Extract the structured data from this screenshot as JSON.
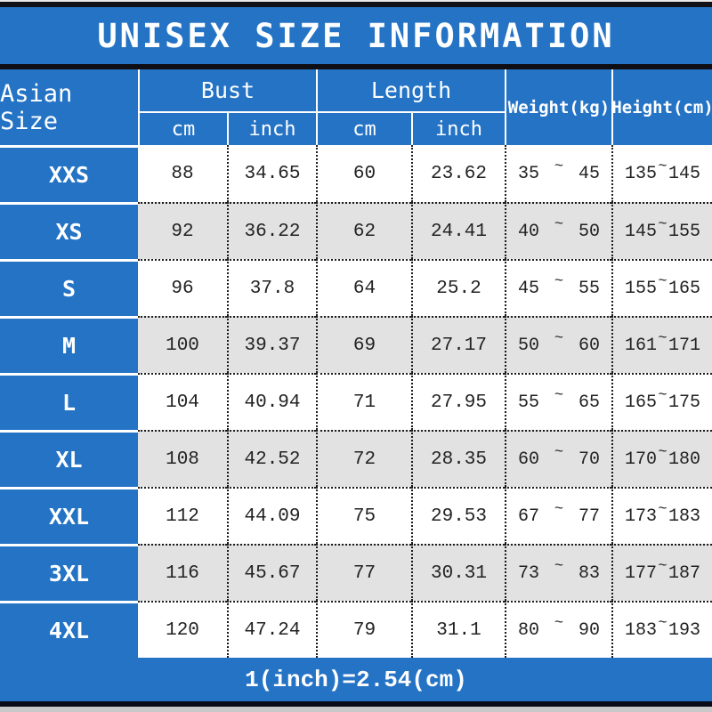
{
  "title": "UNISEX SIZE INFORMATION",
  "colors": {
    "blue": "#2473c5",
    "row_alt": "#e2e2e2",
    "border_dark": "#111118",
    "text_dark": "#222222",
    "text_light": "#ffffff"
  },
  "header": {
    "asian_size": "Asian Size",
    "bust": "Bust",
    "length": "Length",
    "weight": "Weight(kg)",
    "height": "Height(cm)",
    "cm": "cm",
    "inch": "inch"
  },
  "range_separator": "~",
  "rows": [
    {
      "size": "XXS",
      "bust_cm": "88",
      "bust_inch": "34.65",
      "length_cm": "60",
      "length_inch": "23.62",
      "weight_min": "35",
      "weight_max": "45",
      "height_min": "135",
      "height_max": "145"
    },
    {
      "size": "XS",
      "bust_cm": "92",
      "bust_inch": "36.22",
      "length_cm": "62",
      "length_inch": "24.41",
      "weight_min": "40",
      "weight_max": "50",
      "height_min": "145",
      "height_max": "155"
    },
    {
      "size": "S",
      "bust_cm": "96",
      "bust_inch": "37.8",
      "length_cm": "64",
      "length_inch": "25.2",
      "weight_min": "45",
      "weight_max": "55",
      "height_min": "155",
      "height_max": "165"
    },
    {
      "size": "M",
      "bust_cm": "100",
      "bust_inch": "39.37",
      "length_cm": "69",
      "length_inch": "27.17",
      "weight_min": "50",
      "weight_max": "60",
      "height_min": "161",
      "height_max": "171"
    },
    {
      "size": "L",
      "bust_cm": "104",
      "bust_inch": "40.94",
      "length_cm": "71",
      "length_inch": "27.95",
      "weight_min": "55",
      "weight_max": "65",
      "height_min": "165",
      "height_max": "175"
    },
    {
      "size": "XL",
      "bust_cm": "108",
      "bust_inch": "42.52",
      "length_cm": "72",
      "length_inch": "28.35",
      "weight_min": "60",
      "weight_max": "70",
      "height_min": "170",
      "height_max": "180"
    },
    {
      "size": "XXL",
      "bust_cm": "112",
      "bust_inch": "44.09",
      "length_cm": "75",
      "length_inch": "29.53",
      "weight_min": "67",
      "weight_max": "77",
      "height_min": "173",
      "height_max": "183"
    },
    {
      "size": "3XL",
      "bust_cm": "116",
      "bust_inch": "45.67",
      "length_cm": "77",
      "length_inch": "30.31",
      "weight_min": "73",
      "weight_max": "83",
      "height_min": "177",
      "height_max": "187"
    },
    {
      "size": "4XL",
      "bust_cm": "120",
      "bust_inch": "47.24",
      "length_cm": "79",
      "length_inch": "31.1",
      "weight_min": "80",
      "weight_max": "90",
      "height_min": "183",
      "height_max": "193"
    }
  ],
  "footer_note": "1(inch)=2.54(cm)",
  "chart_data": {
    "type": "table",
    "title": "UNISEX SIZE INFORMATION",
    "columns": [
      "Asian Size",
      "Bust cm",
      "Bust inch",
      "Length cm",
      "Length inch",
      "Weight(kg)",
      "Height(cm)"
    ],
    "rows": [
      [
        "XXS",
        "88",
        "34.65",
        "60",
        "23.62",
        "35~45",
        "135~145"
      ],
      [
        "XS",
        "92",
        "36.22",
        "62",
        "24.41",
        "40~50",
        "145~155"
      ],
      [
        "S",
        "96",
        "37.8",
        "64",
        "25.2",
        "45~55",
        "155~165"
      ],
      [
        "M",
        "100",
        "39.37",
        "69",
        "27.17",
        "50~60",
        "161~171"
      ],
      [
        "L",
        "104",
        "40.94",
        "71",
        "27.95",
        "55~65",
        "165~175"
      ],
      [
        "XL",
        "108",
        "42.52",
        "72",
        "28.35",
        "60~70",
        "170~180"
      ],
      [
        "XXL",
        "112",
        "44.09",
        "75",
        "29.53",
        "67~77",
        "173~183"
      ],
      [
        "3XL",
        "116",
        "45.67",
        "77",
        "30.31",
        "73~83",
        "177~187"
      ],
      [
        "4XL",
        "120",
        "47.24",
        "79",
        "31.1",
        "80~90",
        "183~193"
      ]
    ],
    "note": "1(inch)=2.54(cm)"
  }
}
